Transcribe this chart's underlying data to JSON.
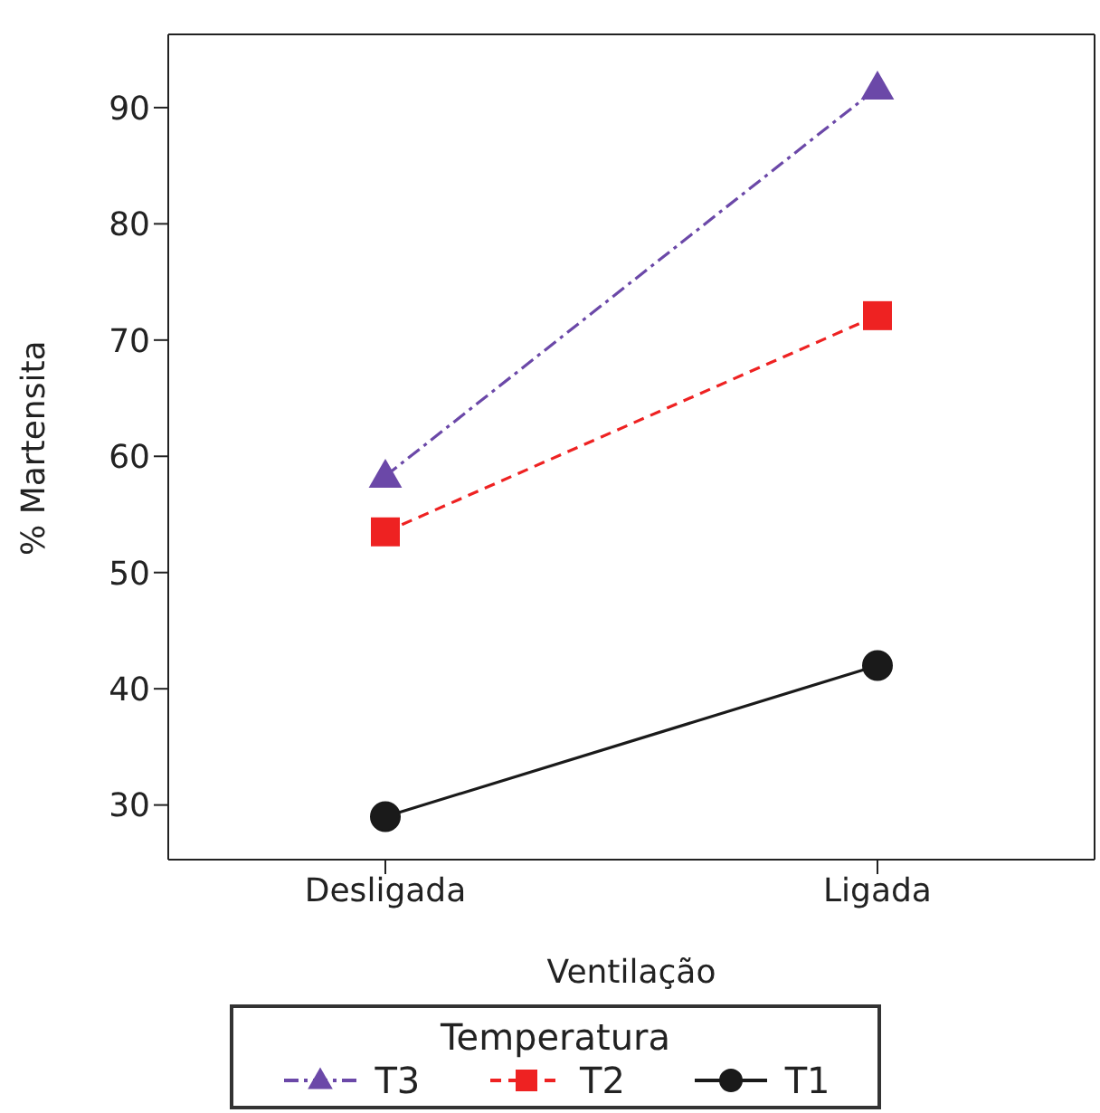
{
  "chart_data": {
    "type": "line",
    "xlabel": "Ventilação",
    "ylabel": "% Martensita",
    "legend_title": "Temperatura",
    "categories": [
      "Desligada",
      "Ligada"
    ],
    "series": [
      {
        "name": "T3",
        "color": "#6b48a8",
        "values": [
          58.3,
          91.7
        ],
        "marker": "triangle",
        "line_style": "dashdot"
      },
      {
        "name": "T2",
        "color": "#ee2222",
        "values": [
          53.5,
          72.1
        ],
        "marker": "square",
        "line_style": "dashed"
      },
      {
        "name": "T1",
        "color": "#1a1a1a",
        "values": [
          29.0,
          42.0
        ],
        "marker": "circle",
        "line_style": "solid"
      }
    ],
    "ylim": [
      25.3,
      96.3
    ],
    "yticks": [
      30,
      40,
      50,
      60,
      70,
      80,
      90
    ],
    "grid": false,
    "legend": "bottom"
  }
}
